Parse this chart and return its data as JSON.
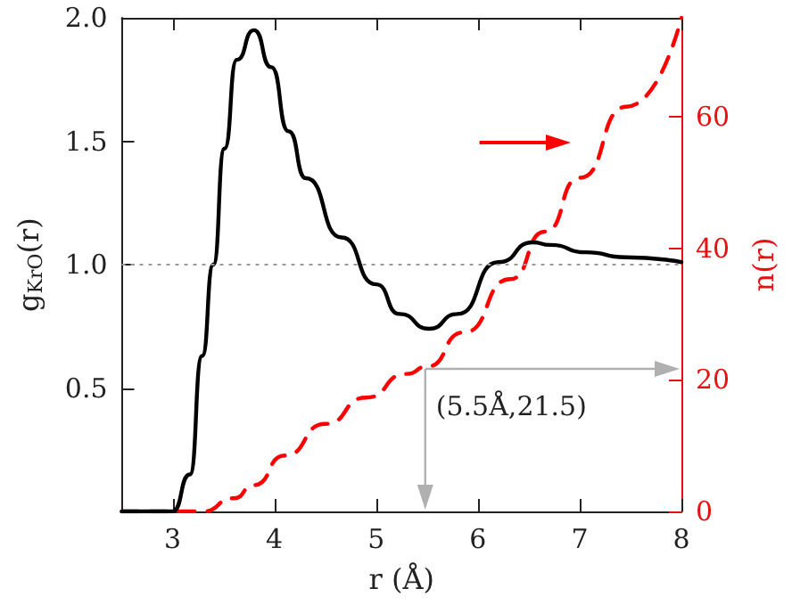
{
  "chart_data": {
    "type": "line",
    "xlabel": "r (Å)",
    "ylabel": "g$_{KrO}$(r)",
    "y2label": "n(r)",
    "xlim": [
      2.5,
      8
    ],
    "xticks": [
      3,
      4,
      5,
      6,
      7,
      8
    ],
    "ylim": [
      0,
      2
    ],
    "yticks": [
      {
        "value": 0,
        "label": null
      },
      0.5,
      {
        "value": 1,
        "label": "1.0"
      },
      1.5,
      {
        "value": 2,
        "label": "2.0"
      }
    ],
    "y2lim": [
      0,
      75
    ],
    "y2ticks": [
      0,
      20,
      40,
      60
    ],
    "grid": false,
    "marker": "none",
    "series": [
      {
        "color": "#000000",
        "line_style": "solid",
        "x": [
          2.5,
          3.0,
          3.17,
          3.29,
          3.4,
          3.51,
          3.63,
          3.8,
          3.97,
          4.14,
          4.31,
          4.66,
          5.0,
          5.23,
          5.52,
          5.8,
          6.2,
          6.54,
          6.71,
          7.06,
          7.45,
          8.0
        ],
        "values": [
          0,
          0,
          0.15,
          0.63,
          1.0,
          1.47,
          1.83,
          1.95,
          1.8,
          1.54,
          1.35,
          1.11,
          0.92,
          0.8,
          0.74,
          0.8,
          1.01,
          1.09,
          1.08,
          1.05,
          1.03,
          1.01
        ]
      },
      {
        "color": "#ff0000",
        "line_style": "dashed",
        "axis": "y2",
        "x": [
          2.5,
          3.3,
          3.6,
          3.8,
          4.1,
          4.5,
          4.9,
          5.3,
          5.5,
          5.86,
          6.32,
          6.66,
          7.0,
          7.46,
          8.0
        ],
        "values": [
          0,
          0,
          2,
          4,
          8.5,
          13.3,
          17.3,
          20.9,
          22,
          27.2,
          35.3,
          42.5,
          50.7,
          61.5,
          75
        ]
      }
    ],
    "ref_lines": [
      {
        "axis": "y",
        "value": 1,
        "color": "#999999",
        "line_style": "dotted"
      }
    ],
    "annotations": [
      "(5.5Å,21.5)"
    ]
  }
}
